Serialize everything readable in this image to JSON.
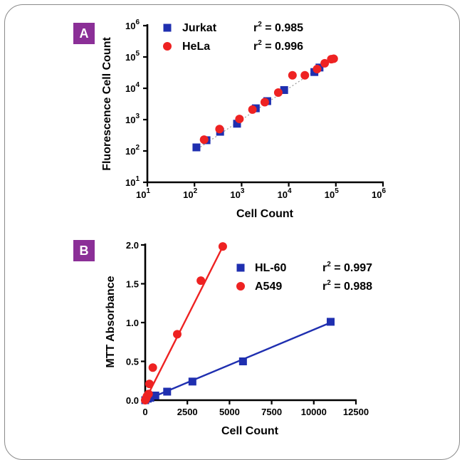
{
  "colors": {
    "blue": "#1f2fb0",
    "red": "#ee2222",
    "badge": "#8b2f97"
  },
  "chart_data": [
    {
      "panel": "A",
      "type": "scatter",
      "xscale": "log",
      "yscale": "log",
      "xlabel": "Cell Count",
      "ylabel": "Fluorescence Cell Count",
      "xlim": [
        10,
        1000000
      ],
      "ylim": [
        10,
        1000000
      ],
      "x_ticks": [
        {
          "base": "10",
          "exp": "1"
        },
        {
          "base": "10",
          "exp": "2"
        },
        {
          "base": "10",
          "exp": "3"
        },
        {
          "base": "10",
          "exp": "4"
        },
        {
          "base": "10",
          "exp": "5"
        },
        {
          "base": "10",
          "exp": "6"
        }
      ],
      "y_ticks": [
        {
          "base": "10",
          "exp": "1"
        },
        {
          "base": "10",
          "exp": "2"
        },
        {
          "base": "10",
          "exp": "3"
        },
        {
          "base": "10",
          "exp": "4"
        },
        {
          "base": "10",
          "exp": "5"
        },
        {
          "base": "10",
          "exp": "6"
        }
      ],
      "series": [
        {
          "name": "Jurkat",
          "marker": "square",
          "color": "#1f2fb0",
          "r2_label": "r",
          "r2_sup": "2",
          "r2_value": " = 0.985",
          "x": [
            110,
            180,
            350,
            800,
            2000,
            3500,
            8000,
            35000,
            45000
          ],
          "y": [
            130,
            220,
            410,
            740,
            2300,
            3900,
            8800,
            33000,
            46000
          ]
        },
        {
          "name": "HeLa",
          "marker": "circle",
          "color": "#ee2222",
          "r2_label": "r",
          "r2_sup": "2",
          "r2_value": " = 0.996",
          "x": [
            160,
            340,
            900,
            3100,
            1700,
            6000,
            12000,
            22000,
            40000,
            58000,
            80000,
            90000
          ],
          "y": [
            230,
            500,
            1050,
            3600,
            2100,
            7300,
            26000,
            26000,
            41000,
            63000,
            85000,
            88000
          ]
        }
      ],
      "fit_line": {
        "style": "dotted",
        "x": [
          100,
          100000
        ]
      }
    },
    {
      "panel": "B",
      "type": "scatter",
      "xscale": "linear",
      "yscale": "linear",
      "xlabel": "Cell Count",
      "ylabel": "MTT Absorbance",
      "xlim": [
        0,
        12500
      ],
      "ylim": [
        0,
        2.0
      ],
      "x_ticks": [
        "0",
        "2500",
        "5000",
        "7500",
        "10000",
        "12500"
      ],
      "y_ticks": [
        "0.0",
        "0.5",
        "1.0",
        "1.5",
        "2.0"
      ],
      "series": [
        {
          "name": "HL-60",
          "marker": "square",
          "color": "#1f2fb0",
          "r2_label": "r",
          "r2_sup": "2",
          "r2_value": " = 0.997",
          "x": [
            0,
            150,
            300,
            600,
            1300,
            2800,
            5800,
            11000
          ],
          "y": [
            0.0,
            0.02,
            0.03,
            0.06,
            0.11,
            0.24,
            0.5,
            1.01
          ],
          "fit": {
            "x": [
              0,
              11000
            ],
            "y": [
              0.0,
              1.0
            ]
          }
        },
        {
          "name": "A549",
          "marker": "circle",
          "color": "#ee2222",
          "r2_label": "r",
          "r2_sup": "2",
          "r2_value": " = 0.988",
          "x": [
            0,
            50,
            100,
            200,
            250,
            450,
            1900,
            3300,
            4600
          ],
          "y": [
            0.0,
            0.02,
            0.05,
            0.08,
            0.21,
            0.42,
            0.85,
            1.54,
            1.98
          ],
          "fit": {
            "x": [
              0,
              4650
            ],
            "y": [
              0.0,
              2.0
            ]
          }
        }
      ]
    }
  ]
}
